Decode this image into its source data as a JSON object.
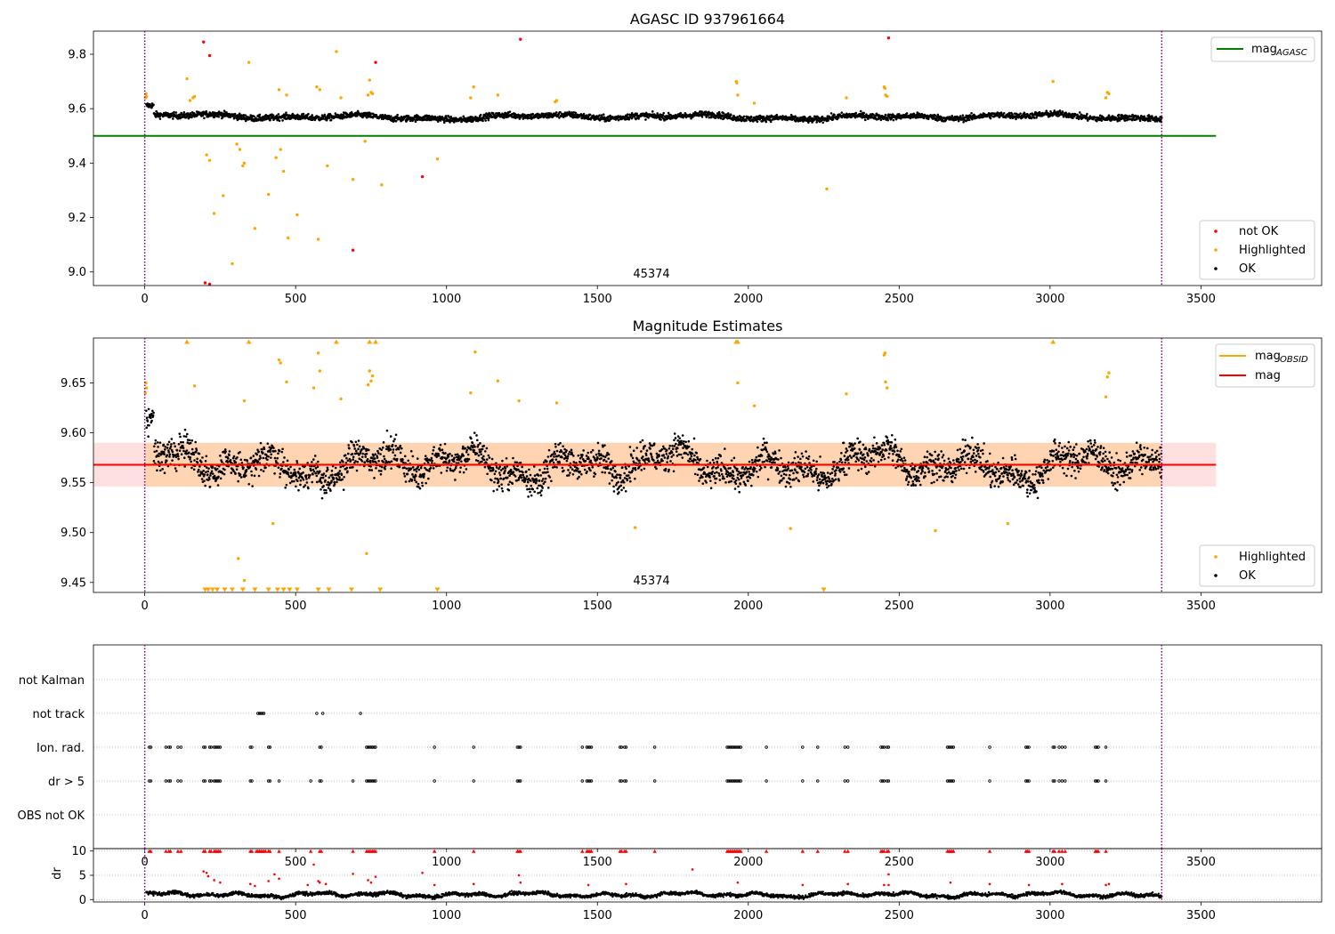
{
  "chart_data": [
    {
      "type": "scatter",
      "title": "AGASC ID 937961664",
      "xlim": [
        -170,
        3900
      ],
      "ylim": [
        8.95,
        9.885
      ],
      "x_ticks": [
        0,
        500,
        1000,
        1500,
        2000,
        2500,
        3000,
        3500
      ],
      "y_ticks": [
        9.0,
        9.2,
        9.4,
        9.6,
        9.8
      ],
      "vlines": [
        0,
        3370
      ],
      "mag_agasc": 9.5,
      "mag_agasc_x_range": [
        -170,
        3550
      ],
      "annotation": "45374",
      "legend_top": [
        {
          "label": "mag",
          "subscript": "AGASC",
          "color": "#008000"
        }
      ],
      "legend_bottom": [
        {
          "label": "not OK",
          "color": "#ff0000"
        },
        {
          "label": "Highlighted",
          "color": "#ffa500"
        },
        {
          "label": "OK",
          "color": "#000000"
        }
      ],
      "series": [
        {
          "name": "not OK",
          "color": "#ff0000",
          "points": [
            [
              195,
              9.845
            ],
            [
              215,
              9.795
            ],
            [
              1245,
              9.855
            ],
            [
              2465,
              9.86
            ],
            [
              920,
              9.35
            ],
            [
              690,
              9.08
            ],
            [
              200,
              8.96
            ],
            [
              215,
              8.955
            ],
            [
              765,
              9.77
            ]
          ]
        },
        {
          "name": "Highlighted",
          "color": "#ffa500",
          "points": [
            [
              2,
              9.64
            ],
            [
              4,
              9.655
            ],
            [
              6,
              9.645
            ],
            [
              140,
              9.71
            ],
            [
              150,
              9.63
            ],
            [
              160,
              9.64
            ],
            [
              165,
              9.645
            ],
            [
              345,
              9.77
            ],
            [
              635,
              9.81
            ],
            [
              1090,
              9.68
            ],
            [
              1170,
              9.65
            ],
            [
              1960,
              9.7
            ],
            [
              1962,
              9.695
            ],
            [
              1965,
              9.65
            ],
            [
              2450,
              9.68
            ],
            [
              2453,
              9.675
            ],
            [
              3010,
              9.7
            ],
            [
              3190,
              9.66
            ],
            [
              3195,
              9.655
            ],
            [
              3185,
              9.64
            ],
            [
              1360,
              9.625
            ],
            [
              1365,
              9.63
            ],
            [
              1080,
              9.64
            ],
            [
              2020,
              9.62
            ],
            [
              2325,
              9.64
            ],
            [
              445,
              9.67
            ],
            [
              470,
              9.65
            ],
            [
              570,
              9.68
            ],
            [
              580,
              9.67
            ],
            [
              650,
              9.64
            ],
            [
              740,
              9.65
            ],
            [
              745,
              9.705
            ],
            [
              750,
              9.66
            ],
            [
              755,
              9.655
            ],
            [
              205,
              9.43
            ],
            [
              215,
              9.41
            ],
            [
              230,
              9.215
            ],
            [
              260,
              9.28
            ],
            [
              290,
              9.03
            ],
            [
              305,
              9.47
            ],
            [
              315,
              9.45
            ],
            [
              325,
              9.39
            ],
            [
              330,
              9.4
            ],
            [
              365,
              9.16
            ],
            [
              410,
              9.285
            ],
            [
              435,
              9.42
            ],
            [
              450,
              9.45
            ],
            [
              460,
              9.37
            ],
            [
              475,
              9.125
            ],
            [
              505,
              9.21
            ],
            [
              575,
              9.12
            ],
            [
              605,
              9.39
            ],
            [
              690,
              9.34
            ],
            [
              730,
              9.48
            ],
            [
              785,
              9.32
            ],
            [
              970,
              9.415
            ],
            [
              2260,
              9.305
            ],
            [
              2455,
              9.65
            ],
            [
              2460,
              9.645
            ]
          ]
        }
      ],
      "ok_series": {
        "name": "OK",
        "color": "#000000",
        "base": 9.57,
        "spread": 0.012
      }
    },
    {
      "type": "scatter",
      "title": "Magnitude Estimates",
      "xlim": [
        -170,
        3900
      ],
      "ylim": [
        9.44,
        9.695
      ],
      "x_ticks": [
        0,
        500,
        1000,
        1500,
        2000,
        2500,
        3000,
        3500
      ],
      "y_ticks": [
        9.45,
        9.5,
        9.55,
        9.6,
        9.65
      ],
      "vlines": [
        0,
        3370
      ],
      "mag": 9.568,
      "mag_band": [
        9.546,
        9.59
      ],
      "mag_obsid_band": [
        9.546,
        9.59
      ],
      "band_x_range": [
        -170,
        3550
      ],
      "mag_obsid_x_range": [
        0,
        3370
      ],
      "annotation": "45374",
      "legend_top": [
        {
          "label": "mag",
          "subscript": "OBSID",
          "color": "#ffa500"
        },
        {
          "label": "mag",
          "subscript": "",
          "color": "#ff0000"
        }
      ],
      "legend_bottom": [
        {
          "label": "Highlighted",
          "color": "#ffa500"
        },
        {
          "label": "OK",
          "color": "#000000"
        }
      ],
      "highlighted_points": [
        [
          2,
          9.64
        ],
        [
          4,
          9.65
        ],
        [
          6,
          9.645
        ],
        [
          165,
          9.647
        ],
        [
          330,
          9.632
        ],
        [
          445,
          9.673
        ],
        [
          450,
          9.67
        ],
        [
          470,
          9.651
        ],
        [
          560,
          9.645
        ],
        [
          575,
          9.68
        ],
        [
          580,
          9.662
        ],
        [
          650,
          9.634
        ],
        [
          740,
          9.648
        ],
        [
          745,
          9.662
        ],
        [
          750,
          9.652
        ],
        [
          755,
          9.657
        ],
        [
          1080,
          9.64
        ],
        [
          1095,
          9.681
        ],
        [
          1170,
          9.652
        ],
        [
          1240,
          9.632
        ],
        [
          1365,
          9.63
        ],
        [
          1965,
          9.65
        ],
        [
          2020,
          9.627
        ],
        [
          2325,
          9.639
        ],
        [
          2450,
          9.678
        ],
        [
          2453,
          9.68
        ],
        [
          2455,
          9.651
        ],
        [
          2460,
          9.645
        ],
        [
          3190,
          9.656
        ],
        [
          3195,
          9.66
        ],
        [
          3185,
          9.636
        ],
        [
          310,
          9.474
        ],
        [
          330,
          9.452
        ],
        [
          735,
          9.479
        ],
        [
          2140,
          9.504
        ],
        [
          2620,
          9.502
        ],
        [
          1625,
          9.505
        ],
        [
          2860,
          9.509
        ],
        [
          425,
          9.509
        ]
      ],
      "up_markers": [
        140,
        345,
        635,
        745,
        765,
        1960,
        1965,
        3010
      ],
      "down_markers": [
        200,
        210,
        225,
        240,
        265,
        290,
        325,
        365,
        410,
        440,
        460,
        480,
        505,
        575,
        610,
        685,
        780,
        970,
        2250
      ],
      "ok_series": {
        "name": "OK",
        "color": "#000000",
        "base": 9.568,
        "spread": 0.02
      }
    },
    {
      "type": "scatter",
      "xlim": [
        -170,
        3900
      ],
      "x_ticks": [
        0,
        500,
        1000,
        1500,
        2000,
        2500,
        3000,
        3500
      ],
      "vlines": [
        0,
        3370
      ],
      "flag_labels": [
        "not Kalman",
        "not track",
        "Ion. rad.",
        "dr > 5",
        "OBS not OK"
      ],
      "flag_points": {
        "not track": [
          375,
          380,
          385,
          390,
          395,
          570,
          590,
          715
        ],
        "Ion. rad.": [
          15,
          20,
          70,
          80,
          85,
          110,
          120,
          195,
          200,
          215,
          220,
          230,
          235,
          240,
          245,
          250,
          350,
          355,
          410,
          415,
          580,
          585,
          735,
          740,
          745,
          750,
          755,
          760,
          765,
          960,
          1090,
          1235,
          1240,
          1245,
          1450,
          1465,
          1470,
          1475,
          1480,
          1575,
          1580,
          1590,
          1595,
          1690,
          1930,
          1935,
          1940,
          1945,
          1950,
          1955,
          1960,
          1965,
          1970,
          1975,
          2060,
          2180,
          2230,
          2320,
          2330,
          2440,
          2445,
          2450,
          2460,
          2465,
          2660,
          2665,
          2670,
          2675,
          2680,
          2800,
          2920,
          2925,
          2930,
          3010,
          3015,
          3030,
          3040,
          3050,
          3150,
          3155,
          3160,
          3185
        ],
        "dr > 5": [
          15,
          20,
          70,
          80,
          85,
          110,
          120,
          195,
          200,
          215,
          220,
          230,
          235,
          240,
          245,
          250,
          350,
          355,
          410,
          415,
          445,
          550,
          580,
          585,
          690,
          735,
          740,
          745,
          750,
          755,
          760,
          765,
          960,
          1090,
          1235,
          1240,
          1245,
          1450,
          1465,
          1470,
          1475,
          1480,
          1575,
          1580,
          1590,
          1595,
          1690,
          1930,
          1935,
          1940,
          1945,
          1950,
          1955,
          1960,
          1965,
          1970,
          1975,
          2060,
          2180,
          2230,
          2320,
          2330,
          2440,
          2445,
          2450,
          2460,
          2465,
          2660,
          2665,
          2670,
          2675,
          2680,
          2800,
          2920,
          2925,
          2930,
          3010,
          3015,
          3030,
          3040,
          3050,
          3150,
          3155,
          3160,
          3185
        ]
      }
    },
    {
      "type": "scatter",
      "xlim": [
        -170,
        3900
      ],
      "ylim": [
        -0.5,
        10.5
      ],
      "x_ticks": [
        0,
        500,
        1000,
        1500,
        2000,
        2500,
        3000,
        3500
      ],
      "y_ticks": [
        0,
        5,
        10
      ],
      "ylabel": "dr",
      "vlines": [
        0,
        3370
      ],
      "capped_markers": [
        15,
        20,
        70,
        80,
        85,
        110,
        120,
        195,
        200,
        215,
        220,
        230,
        235,
        240,
        245,
        250,
        350,
        355,
        370,
        375,
        380,
        385,
        390,
        395,
        400,
        410,
        415,
        445,
        550,
        580,
        585,
        690,
        735,
        740,
        745,
        750,
        755,
        760,
        765,
        960,
        1090,
        1235,
        1240,
        1245,
        1450,
        1465,
        1470,
        1475,
        1480,
        1575,
        1580,
        1590,
        1595,
        1690,
        1930,
        1935,
        1940,
        1945,
        1950,
        1955,
        1960,
        1965,
        1970,
        1975,
        2060,
        2180,
        2230,
        2320,
        2330,
        2440,
        2445,
        2450,
        2460,
        2465,
        2660,
        2665,
        2670,
        2675,
        2680,
        2800,
        2920,
        2925,
        2930,
        3010,
        3015,
        3030,
        3040,
        3050,
        3150,
        3155,
        3160,
        3185
      ],
      "red_points": [
        [
          195,
          5.8
        ],
        [
          205,
          5.5
        ],
        [
          210,
          4.8
        ],
        [
          230,
          4.0
        ],
        [
          250,
          3.5
        ],
        [
          350,
          3.2
        ],
        [
          365,
          2.8
        ],
        [
          410,
          3.8
        ],
        [
          430,
          5.2
        ],
        [
          445,
          4.3
        ],
        [
          540,
          3.0
        ],
        [
          560,
          7.2
        ],
        [
          575,
          3.8
        ],
        [
          580,
          3.5
        ],
        [
          600,
          3.2
        ],
        [
          690,
          5.3
        ],
        [
          740,
          4.0
        ],
        [
          750,
          3.5
        ],
        [
          765,
          4.7
        ],
        [
          920,
          5.5
        ],
        [
          960,
          3.0
        ],
        [
          1090,
          3.2
        ],
        [
          1240,
          5.0
        ],
        [
          1245,
          3.5
        ],
        [
          1470,
          3.0
        ],
        [
          1595,
          3.2
        ],
        [
          1815,
          6.2
        ],
        [
          1965,
          3.5
        ],
        [
          2180,
          3.0
        ],
        [
          2330,
          3.2
        ],
        [
          2450,
          3.0
        ],
        [
          2465,
          5.2
        ],
        [
          2465,
          3.0
        ],
        [
          2670,
          3.5
        ],
        [
          2800,
          3.2
        ],
        [
          2930,
          3.0
        ],
        [
          3040,
          3.2
        ],
        [
          3185,
          3.0
        ],
        [
          3195,
          3.2
        ]
      ],
      "ok_series": {
        "name": "OK",
        "color": "#000000",
        "base": 1.0,
        "spread": 0.6
      }
    }
  ]
}
